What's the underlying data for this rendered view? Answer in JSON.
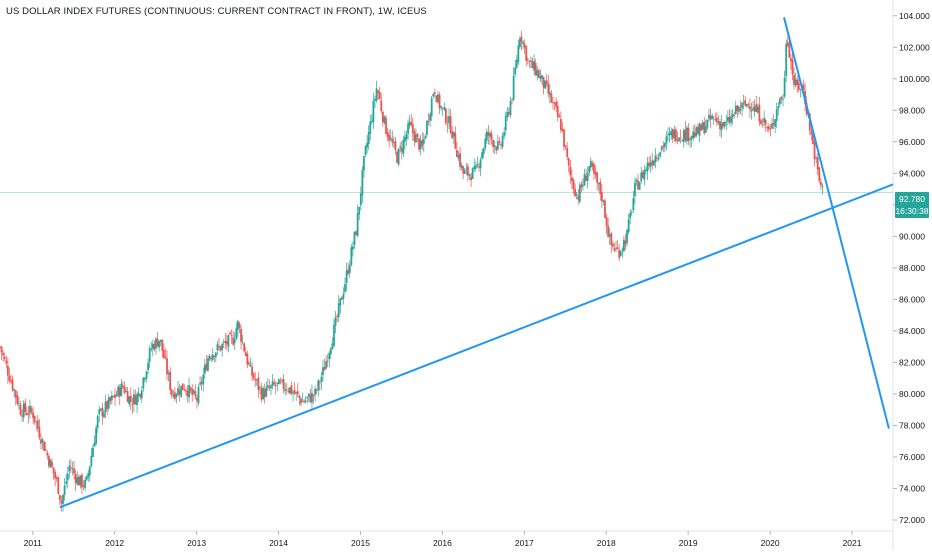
{
  "header": {
    "title": "US DOLLAR INDEX FUTURES (CONTINUOUS: CURRENT CONTRACT IN FRONT), 1W, ICEUS"
  },
  "price_label": {
    "value": "92.780",
    "countdown": "16:30:38",
    "color": "#26a69a"
  },
  "colors": {
    "up": "#26a69a",
    "down": "#ef5350",
    "trendline": "#2196f3",
    "grid": "#f0f3fa",
    "axis_text": "#131722"
  },
  "chart_data": {
    "type": "candlestick",
    "title": "US DOLLAR INDEX FUTURES (CONTINUOUS: CURRENT CONTRACT IN FRONT), 1W, ICEUS",
    "x_ticks": [
      "2011",
      "2012",
      "2013",
      "2014",
      "2015",
      "2016",
      "2017",
      "2018",
      "2019",
      "2020",
      "2021"
    ],
    "y_ticks": [
      "72.000",
      "74.000",
      "76.000",
      "78.000",
      "80.000",
      "82.000",
      "84.000",
      "86.000",
      "88.000",
      "90.000",
      "92.000",
      "94.000",
      "96.000",
      "98.000",
      "100.000",
      "102.000",
      "104.000"
    ],
    "xlim": [
      2010.6,
      2021.5
    ],
    "ylim": [
      71.3,
      105.0
    ],
    "last_price": 92.78,
    "series": [
      {
        "name": "price",
        "points": [
          [
            2010.6,
            83.0
          ],
          [
            2010.85,
            79.0
          ],
          [
            2011.0,
            78.8
          ],
          [
            2011.15,
            76.5
          ],
          [
            2011.3,
            74.3
          ],
          [
            2011.35,
            73.1
          ],
          [
            2011.45,
            75.5
          ],
          [
            2011.55,
            74.5
          ],
          [
            2011.65,
            74.2
          ],
          [
            2011.8,
            78.6
          ],
          [
            2011.95,
            79.5
          ],
          [
            2012.1,
            80.5
          ],
          [
            2012.2,
            79.5
          ],
          [
            2012.3,
            80.0
          ],
          [
            2012.45,
            83.0
          ],
          [
            2012.55,
            83.5
          ],
          [
            2012.7,
            80.0
          ],
          [
            2012.85,
            80.5
          ],
          [
            2013.0,
            79.6
          ],
          [
            2013.15,
            82.5
          ],
          [
            2013.3,
            83.0
          ],
          [
            2013.45,
            83.5
          ],
          [
            2013.5,
            84.5
          ],
          [
            2013.65,
            81.5
          ],
          [
            2013.8,
            80.0
          ],
          [
            2013.95,
            80.5
          ],
          [
            2014.1,
            80.5
          ],
          [
            2014.3,
            79.5
          ],
          [
            2014.45,
            80.0
          ],
          [
            2014.55,
            81.5
          ],
          [
            2014.7,
            84.5
          ],
          [
            2014.85,
            88.0
          ],
          [
            2014.95,
            90.5
          ],
          [
            2015.05,
            95.0
          ],
          [
            2015.2,
            99.5
          ],
          [
            2015.3,
            97.0
          ],
          [
            2015.45,
            95.0
          ],
          [
            2015.6,
            97.0
          ],
          [
            2015.75,
            95.5
          ],
          [
            2015.9,
            99.5
          ],
          [
            2015.95,
            98.5
          ],
          [
            2016.1,
            97.0
          ],
          [
            2016.25,
            94.0
          ],
          [
            2016.4,
            94.0
          ],
          [
            2016.55,
            96.5
          ],
          [
            2016.7,
            95.5
          ],
          [
            2016.85,
            99.0
          ],
          [
            2016.95,
            103.0
          ],
          [
            2017.05,
            101.0
          ],
          [
            2017.15,
            100.5
          ],
          [
            2017.3,
            99.0
          ],
          [
            2017.45,
            97.0
          ],
          [
            2017.55,
            94.0
          ],
          [
            2017.65,
            92.5
          ],
          [
            2017.8,
            94.5
          ],
          [
            2017.95,
            92.5
          ],
          [
            2018.05,
            89.5
          ],
          [
            2018.15,
            89.0
          ],
          [
            2018.25,
            90.0
          ],
          [
            2018.35,
            93.0
          ],
          [
            2018.5,
            94.5
          ],
          [
            2018.65,
            95.5
          ],
          [
            2018.8,
            96.5
          ],
          [
            2018.95,
            96.5
          ],
          [
            2019.1,
            96.5
          ],
          [
            2019.3,
            97.5
          ],
          [
            2019.45,
            97.0
          ],
          [
            2019.6,
            98.0
          ],
          [
            2019.75,
            98.5
          ],
          [
            2019.9,
            97.5
          ],
          [
            2020.0,
            96.5
          ],
          [
            2020.1,
            98.5
          ],
          [
            2020.17,
            99.0
          ],
          [
            2020.2,
            103.0
          ],
          [
            2020.3,
            99.5
          ],
          [
            2020.4,
            99.5
          ],
          [
            2020.5,
            96.5
          ],
          [
            2020.6,
            93.5
          ],
          [
            2020.65,
            92.78
          ]
        ]
      }
    ],
    "trendlines": [
      {
        "name": "rising-support",
        "from": [
          2011.33,
          72.8
        ],
        "to": [
          2021.5,
          93.3
        ]
      },
      {
        "name": "falling-resistance",
        "from": [
          2020.17,
          103.9
        ],
        "to": [
          2021.45,
          77.8
        ]
      }
    ],
    "grid": false,
    "legend": "none"
  }
}
